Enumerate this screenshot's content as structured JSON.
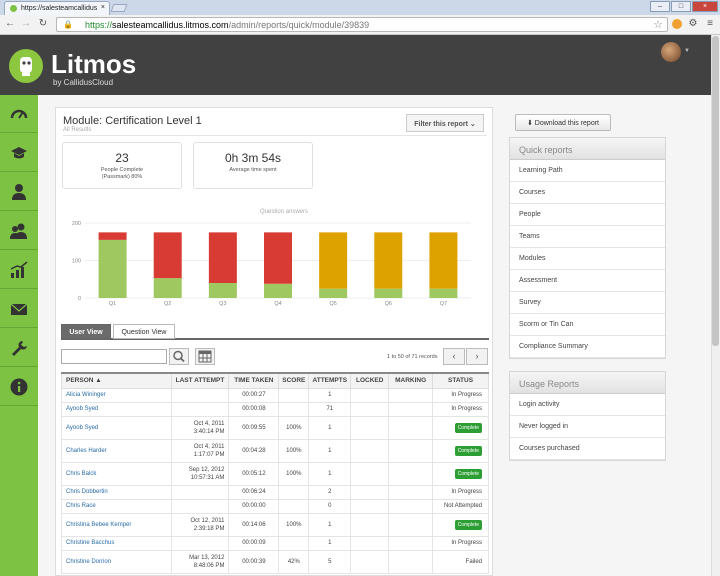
{
  "browser": {
    "tab_title": "https://salesteamcallidus",
    "tab_close": "×",
    "url_scheme": "https://",
    "url_host": "salesteamcallidus.litmos.com",
    "url_path": "/admin/reports/quick/module/39839",
    "win_min": "–",
    "win_max": "□",
    "win_close": "×"
  },
  "brand": {
    "name": "Litmos",
    "byline": "by CallidusCloud",
    "accent": "#7dc242"
  },
  "module": {
    "title": "Module: Certification Level 1",
    "subtitle": "All Results",
    "filter_label": "Filter this report"
  },
  "stats": [
    {
      "value": "23",
      "label_line1": "People Complete",
      "label_line2": "(Passmark) 80%"
    },
    {
      "value": "0h 3m 54s",
      "label_line1": "Average time spent",
      "label_line2": ""
    }
  ],
  "chart_data": {
    "type": "bar",
    "stacked": true,
    "title": "Question answers",
    "categories": [
      "Q1",
      "Q2",
      "Q3",
      "Q4",
      "Q5",
      "Q6",
      "Q7"
    ],
    "series": [
      {
        "color": "#a0c860",
        "values": [
          155,
          53,
          40,
          38,
          25,
          25,
          25
        ]
      },
      {
        "color": "#d73b33",
        "values": [
          20,
          122,
          135,
          137,
          0,
          0,
          0
        ]
      },
      {
        "color": "#dea200",
        "values": [
          0,
          0,
          0,
          0,
          150,
          150,
          150
        ]
      }
    ],
    "yticks": [
      0,
      100,
      200
    ],
    "ylim": [
      0,
      200
    ],
    "grid": true
  },
  "view_tabs": [
    {
      "label": "User View",
      "active": true
    },
    {
      "label": "Question View",
      "active": false
    }
  ],
  "search": {
    "placeholder": ""
  },
  "records": "1 to 50 of 71 records",
  "table": {
    "headers": [
      "PERSON",
      "LAST ATTEMPT",
      "TIME TAKEN",
      "SCORE",
      "ATTEMPTS",
      "LOCKED",
      "MARKING",
      "STATUS"
    ],
    "rows": [
      {
        "name": "Alicia Wininger",
        "date": "",
        "time": "",
        "taken": "00:00:27",
        "score": "",
        "attempts": "1",
        "locked": "",
        "marking": "",
        "status": "In Progress",
        "badge": false
      },
      {
        "name": "Ayoob Syed",
        "date": "",
        "time": "",
        "taken": "00:00:08",
        "score": "",
        "attempts": "71",
        "locked": "",
        "marking": "",
        "status": "In Progress",
        "badge": false
      },
      {
        "name": "Ayoob Syed",
        "date": "Oct 4, 2011",
        "time": "3:40:14 PM",
        "taken": "00:09:55",
        "score": "100%",
        "attempts": "1",
        "locked": "",
        "marking": "",
        "status": "Complete",
        "badge": true
      },
      {
        "name": "Charles Harder",
        "date": "Oct 4, 2011",
        "time": "1:17:07 PM",
        "taken": "00:04:28",
        "score": "100%",
        "attempts": "1",
        "locked": "",
        "marking": "",
        "status": "Complete",
        "badge": true
      },
      {
        "name": "Chris Balck",
        "date": "Sep 12, 2012",
        "time": "10:57:31 AM",
        "taken": "00:05:12",
        "score": "100%",
        "attempts": "1",
        "locked": "",
        "marking": "",
        "status": "Complete",
        "badge": true
      },
      {
        "name": "Chris Dobbertin",
        "date": "",
        "time": "",
        "taken": "00:06:24",
        "score": "",
        "attempts": "2",
        "locked": "",
        "marking": "",
        "status": "In Progress",
        "badge": false
      },
      {
        "name": "Chris Race",
        "date": "",
        "time": "",
        "taken": "00:00:00",
        "score": "",
        "attempts": "0",
        "locked": "",
        "marking": "",
        "status": "Not Attempted",
        "badge": false
      },
      {
        "name": "Christina Bebee Kemper",
        "date": "Oct 12, 2011",
        "time": "2:39:18 PM",
        "taken": "00:14:06",
        "score": "100%",
        "attempts": "1",
        "locked": "",
        "marking": "",
        "status": "Complete",
        "badge": true
      },
      {
        "name": "Christine Bacchus",
        "date": "",
        "time": "",
        "taken": "00:00:09",
        "score": "",
        "attempts": "1",
        "locked": "",
        "marking": "",
        "status": "In Progress",
        "badge": false
      },
      {
        "name": "Christine Dorrion",
        "date": "Mar 13, 2012",
        "time": "8:48:06 PM",
        "taken": "00:00:39",
        "score": "42%",
        "attempts": "5",
        "locked": "",
        "marking": "",
        "status": "Failed",
        "badge": false
      }
    ]
  },
  "right": {
    "download_label": "Download this report",
    "quick_reports": {
      "title": "Quick reports",
      "items": [
        "Learning Path",
        "Courses",
        "People",
        "Teams",
        "Modules",
        "Assessment",
        "Survey",
        "Scorm or Tin Can",
        "Compliance Summary"
      ]
    },
    "usage_reports": {
      "title": "Usage Reports",
      "items": [
        "Login activity",
        "Never logged in",
        "Courses purchased"
      ]
    }
  },
  "sidebar_icons": [
    "dashboard-icon",
    "graduation-cap-icon",
    "person-icon",
    "people-icon",
    "chart-icon",
    "mail-icon",
    "wrench-icon",
    "info-icon"
  ]
}
